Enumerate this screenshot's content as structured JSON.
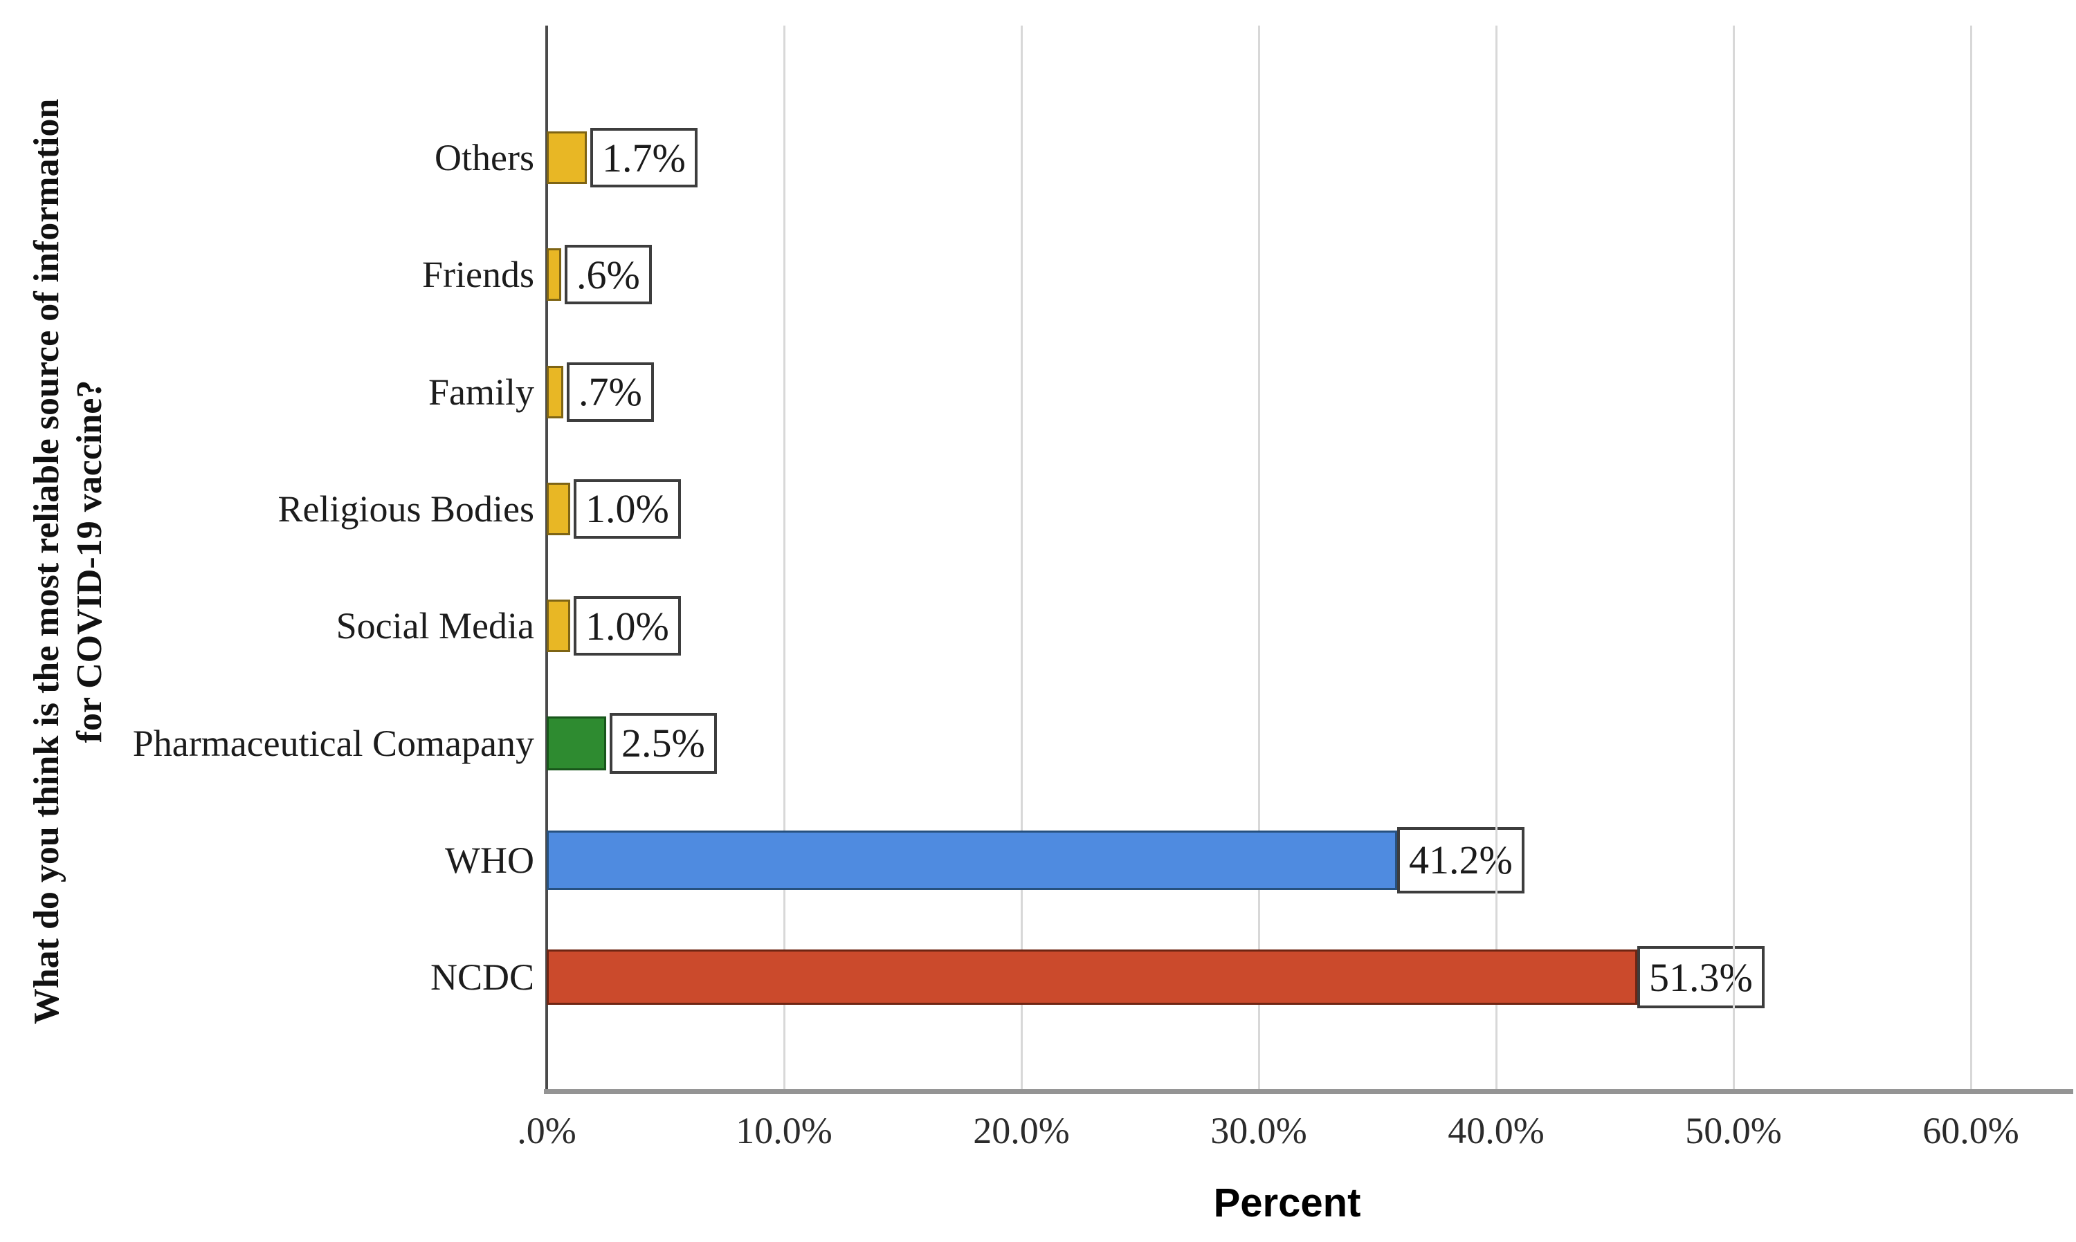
{
  "chart_data": {
    "type": "bar",
    "orientation": "horizontal",
    "y_axis_title": "What do you think is the most reliable source of information for COVID-19 vaccine?",
    "y_axis_title_line1": "What do you think is the most reliable source of information",
    "y_axis_title_line2": "for COVID-19 vaccine?",
    "x_axis_title": "Percent",
    "categories": [
      "Others",
      "Friends",
      "Family",
      "Religious Bodies",
      "Social Media",
      "Pharmaceutical Comapany",
      "WHO",
      "NCDC"
    ],
    "values": [
      1.7,
      0.6,
      0.7,
      1.0,
      1.0,
      2.5,
      41.2,
      51.3
    ],
    "value_labels": [
      "1.7%",
      ".6%",
      ".7%",
      "1.0%",
      "1.0%",
      "2.5%",
      "41.2%",
      "51.3%"
    ],
    "bar_colors": [
      "#e8b725",
      "#e8b725",
      "#e8b725",
      "#e8b725",
      "#e8b725",
      "#2e8b30",
      "#4f8be0",
      "#cb4a2c"
    ],
    "bar_border_colors": [
      "#7e6414",
      "#7e6414",
      "#7e6414",
      "#7e6414",
      "#7e6414",
      "#18561b",
      "#27517f",
      "#6e2513"
    ],
    "x_tick_labels": [
      ".0%",
      "10.0%",
      "20.0%",
      "30.0%",
      "40.0%",
      "50.0%",
      "60.0%"
    ],
    "x_tick_values": [
      0,
      10,
      20,
      30,
      40,
      50,
      60
    ],
    "xlim": [
      0,
      64.3
    ],
    "grid": "vertical-gridlines-on",
    "legend": "none",
    "value_label_style": "white-box-dark-border"
  },
  "style_colors": {
    "gridline": "#d8d8d8",
    "zero_axis_line": "#4a4a4a",
    "x_axis_line": "#949494",
    "value_box_border": "#3d3d3d",
    "background": "#ffffff"
  }
}
